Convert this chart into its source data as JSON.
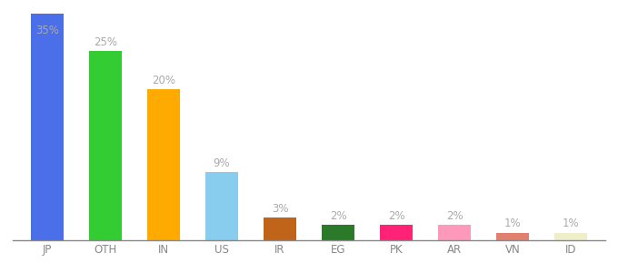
{
  "categories": [
    "JP",
    "OTH",
    "IN",
    "US",
    "IR",
    "EG",
    "PK",
    "AR",
    "VN",
    "ID"
  ],
  "values": [
    35,
    25,
    20,
    9,
    3,
    2,
    2,
    2,
    1,
    1
  ],
  "labels": [
    "35%",
    "25%",
    "20%",
    "9%",
    "3%",
    "2%",
    "2%",
    "2%",
    "1%",
    "1%"
  ],
  "colors": [
    "#4a6fe8",
    "#33cc33",
    "#ffaa00",
    "#88ccee",
    "#c0641a",
    "#2a7a2a",
    "#ff2277",
    "#ff99bb",
    "#e08070",
    "#eeeec8"
  ],
  "background_color": "#ffffff",
  "bar_width": 0.55,
  "ylim": [
    0,
    30
  ],
  "label_color": "#aaaaaa",
  "label_fontsize": 8.5,
  "tick_fontsize": 8.5,
  "tick_color": "#888888"
}
